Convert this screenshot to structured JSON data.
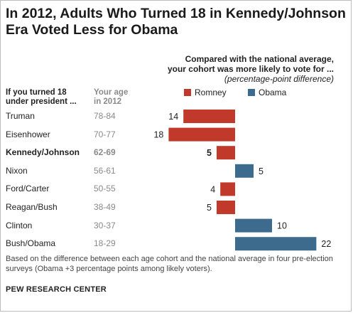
{
  "title_line1": "In 2012, Adults Who Turned 18 in Kennedy/Johnson",
  "title_line2": "Era Voted Less for Obama",
  "subhead_line1": "Compared with the national average,",
  "subhead_line2": "your cohort was more likely to vote for ...",
  "subhead_line3": "(percentage-point difference)",
  "col_head_era_line1": "If you turned 18",
  "col_head_era_line2": "under president ...",
  "col_head_age_line1": "Your age",
  "col_head_age_line2": "in 2012",
  "legend": {
    "romney": "Romney",
    "obama": "Obama"
  },
  "colors": {
    "romney": "#c0392b",
    "obama": "#3d6b8e"
  },
  "rows": [
    {
      "era": "Truman",
      "age": "78-84"
    },
    {
      "era": "Eisenhower",
      "age": "70-77"
    },
    {
      "era": "Kennedy/Johnson",
      "age": "62-69"
    },
    {
      "era": "Nixon",
      "age": "56-61"
    },
    {
      "era": "Ford/Carter",
      "age": "50-55"
    },
    {
      "era": "Reagan/Bush",
      "age": "38-49"
    },
    {
      "era": "Clinton",
      "age": "30-37"
    },
    {
      "era": "Bush/Obama",
      "age": "18-29"
    }
  ],
  "chart_data": {
    "type": "bar",
    "orientation": "horizontal-diverging",
    "categories": [
      "Truman",
      "Eisenhower",
      "Kennedy/Johnson",
      "Nixon",
      "Ford/Carter",
      "Reagan/Bush",
      "Clinton",
      "Bush/Obama"
    ],
    "values": [
      -14,
      -18,
      -5,
      5,
      -4,
      -5,
      10,
      22
    ],
    "labels": [
      "14",
      "18",
      "5",
      "5",
      "4",
      "5",
      "10",
      "22"
    ],
    "series": [
      {
        "name": "Romney",
        "sign": "negative"
      },
      {
        "name": "Obama",
        "sign": "positive"
      }
    ],
    "highlight": "Kennedy/Johnson",
    "title": "In 2012, Adults Who Turned 18 in Kennedy/Johnson Era Voted Less for Obama",
    "subtitle": "Compared with the national average, your cohort was more likely to vote for ... (percentage-point difference)",
    "xlabel": "",
    "ylabel": "",
    "xlim": [
      -18,
      22
    ],
    "grid": false,
    "legend_position": "top"
  },
  "footnote": "Based on the difference between each age cohort and the national average in four pre-election surveys (Obama +3 percentage points among likely voters).",
  "source": "PEW RESEARCH CENTER"
}
